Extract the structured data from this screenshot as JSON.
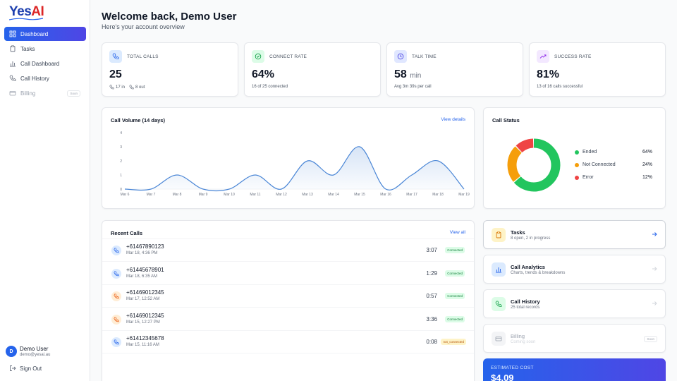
{
  "brand": {
    "logo_part1": "Yes",
    "logo_part2": "AI"
  },
  "sidebar": {
    "items": [
      {
        "label": "Dashboard",
        "icon": "grid-icon",
        "active": true
      },
      {
        "label": "Tasks",
        "icon": "clipboard-icon"
      },
      {
        "label": "Call Dashboard",
        "icon": "bar-chart-icon"
      },
      {
        "label": "Call History",
        "icon": "phone-icon"
      },
      {
        "label": "Billing",
        "icon": "card-icon",
        "badge": "Soon",
        "disabled": true
      }
    ],
    "user": {
      "initial": "D",
      "name": "Demo User",
      "email": "demo@yesai.au"
    },
    "signout_label": "Sign Out"
  },
  "header": {
    "title": "Welcome back, Demo User",
    "subtitle": "Here's your account overview"
  },
  "stats": [
    {
      "label": "TOTAL CALLS",
      "value": "25",
      "unit": "",
      "in_text": "17 in",
      "out_text": "8 out",
      "color": "#2563eb",
      "bg": "#dbeafe"
    },
    {
      "label": "CONNECT RATE",
      "value": "64%",
      "unit": "",
      "sub": "16 of 25 connected",
      "color": "#16a34a",
      "bg": "#dcfce7"
    },
    {
      "label": "TALK TIME",
      "value": "58",
      "unit": "min",
      "sub": "Avg 3m 39s per call",
      "color": "#4f46e5",
      "bg": "#e0e7ff"
    },
    {
      "label": "SUCCESS RATE",
      "value": "81%",
      "unit": "",
      "sub": "13 of 16 calls successful",
      "color": "#9333ea",
      "bg": "#f3e8ff"
    }
  ],
  "volume": {
    "title": "Call Volume (14 days)",
    "link": "View details"
  },
  "chart_data": [
    {
      "type": "area",
      "title": "Call Volume (14 days)",
      "x": [
        "Mar 6",
        "Mar 7",
        "Mar 8",
        "Mar 9",
        "Mar 10",
        "Mar 11",
        "Mar 12",
        "Mar 13",
        "Mar 14",
        "Mar 15",
        "Mar 16",
        "Mar 17",
        "Mar 18",
        "Mar 19"
      ],
      "values": [
        0,
        0,
        1,
        0,
        0,
        1,
        0,
        2,
        1,
        3,
        0,
        1,
        2,
        0
      ],
      "yticks": [
        "0",
        "1",
        "2",
        "3",
        "4"
      ],
      "ylim": [
        0,
        4
      ],
      "color": "#4a86d6"
    },
    {
      "type": "pie",
      "title": "Call Status",
      "categories": [
        "Ended",
        "Not Connected",
        "Error"
      ],
      "values": [
        64,
        24,
        12
      ],
      "labels": [
        "64%",
        "24%",
        "12%"
      ],
      "colors": [
        "#22c55e",
        "#f59e0b",
        "#ef4444"
      ]
    }
  ],
  "status": {
    "title": "Call Status"
  },
  "recent": {
    "title": "Recent Calls",
    "link": "View all",
    "rows": [
      {
        "number": "+61467890123",
        "when": "Mar 18, 4:36 PM",
        "duration": "3:07",
        "status": "Connected",
        "dir": "in"
      },
      {
        "number": "+61445678901",
        "when": "Mar 18, 6:35 AM",
        "duration": "1:29",
        "status": "Connected",
        "dir": "in"
      },
      {
        "number": "+61469012345",
        "when": "Mar 17, 12:52 AM",
        "duration": "0:57",
        "status": "Connected",
        "dir": "out"
      },
      {
        "number": "+61469012345",
        "when": "Mar 15, 12:27 PM",
        "duration": "3:36",
        "status": "Connected",
        "dir": "out"
      },
      {
        "number": "+61412345678",
        "when": "Mar 15, 11:16 AM",
        "duration": "0:08",
        "status": "not_connected",
        "dir": "in"
      }
    ]
  },
  "shortcuts": [
    {
      "title": "Tasks",
      "sub": "8 open, 2 in progress",
      "icon": "clipboard-icon",
      "color": "#d97706",
      "bg": "#fef3c7"
    },
    {
      "title": "Call Analytics",
      "sub": "Charts, trends & breakdowns",
      "icon": "bar-chart-icon",
      "color": "#2563eb",
      "bg": "#dbeafe"
    },
    {
      "title": "Call History",
      "sub": "25 total records",
      "icon": "phone-icon",
      "color": "#16a34a",
      "bg": "#dcfce7"
    },
    {
      "title": "Billing",
      "sub": "Coming soon",
      "icon": "card-icon",
      "badge": "Soon",
      "color": "#9ca3af",
      "bg": "#f3f4f6"
    }
  ],
  "cost": {
    "label": "ESTIMATED COST",
    "value": "$4.09"
  }
}
